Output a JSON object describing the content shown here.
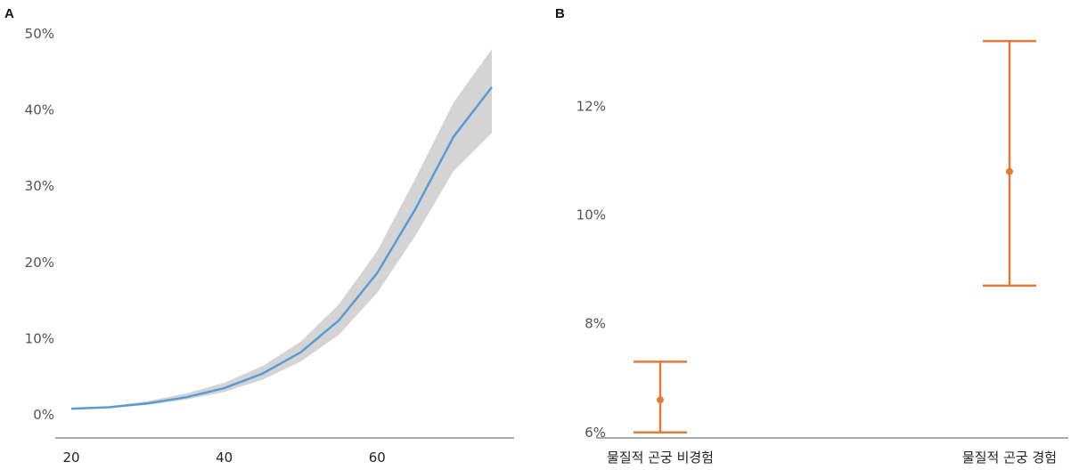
{
  "chart_data": [
    {
      "panel": "A",
      "type": "line",
      "x_ticks": [
        20,
        40,
        60
      ],
      "y_ticks": [
        "0%",
        "10%",
        "20%",
        "30%",
        "40%",
        "50%"
      ],
      "xlim": [
        20,
        75
      ],
      "ylim": [
        0,
        50
      ],
      "series": [
        {
          "x": [
            20,
            25,
            30,
            35,
            40,
            45,
            50,
            55,
            60,
            65,
            70,
            75
          ],
          "y": [
            0.8,
            1.0,
            1.5,
            2.3,
            3.5,
            5.4,
            8.2,
            12.4,
            18.6,
            27.0,
            36.5,
            43.0
          ],
          "lower": [
            0.7,
            0.9,
            1.3,
            2.0,
            3.0,
            4.6,
            7.0,
            10.5,
            16.0,
            23.5,
            32.0,
            37.0
          ],
          "upper": [
            0.9,
            1.1,
            1.8,
            2.8,
            4.2,
            6.4,
            9.6,
            14.5,
            21.5,
            31.0,
            41.0,
            48.0
          ]
        }
      ],
      "colors": {
        "line": "#5b9bd5",
        "band": "#d4d4d4",
        "axis": "#aaaaaa"
      }
    },
    {
      "panel": "B",
      "type": "scatter",
      "y_ticks": [
        "6%",
        "8%",
        "10%",
        "12%"
      ],
      "ylim": [
        5.8,
        13.3
      ],
      "categories": [
        "물질적 곤궁 비경험",
        "물질적 곤궁 경험"
      ],
      "points": [
        {
          "category": "물질적 곤궁 비경험",
          "value": 6.6,
          "lower": 6.0,
          "upper": 7.3
        },
        {
          "category": "물질적 곤궁 경험",
          "value": 10.8,
          "lower": 8.7,
          "upper": 13.2
        }
      ],
      "colors": {
        "marker": "#e07b39",
        "axis": "#aaaaaa"
      }
    }
  ]
}
